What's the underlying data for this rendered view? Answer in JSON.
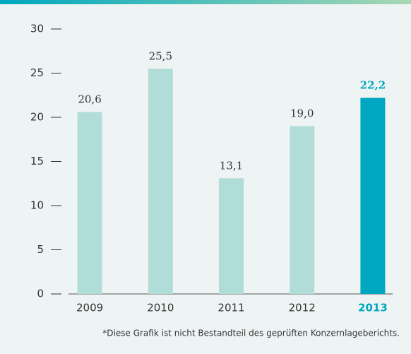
{
  "chart_data": {
    "type": "bar",
    "categories": [
      "2009",
      "2010",
      "2011",
      "2012",
      "2013"
    ],
    "values": [
      20.6,
      25.5,
      13.1,
      19.0,
      22.2
    ],
    "value_labels": [
      "20,6",
      "25,5",
      "13,1",
      "19,0",
      "22,2"
    ],
    "colors": [
      "#b1ddd9",
      "#b1ddd9",
      "#b1ddd9",
      "#b1ddd9",
      "#00a7c0"
    ],
    "highlight_color": "#00a7c0",
    "ylim": [
      0,
      30
    ],
    "yticks": [
      0,
      5,
      10,
      15,
      20,
      25,
      30
    ],
    "footnote": "*Diese Grafik ist nicht Bestandteil des geprüften Konzernlageberichts."
  }
}
